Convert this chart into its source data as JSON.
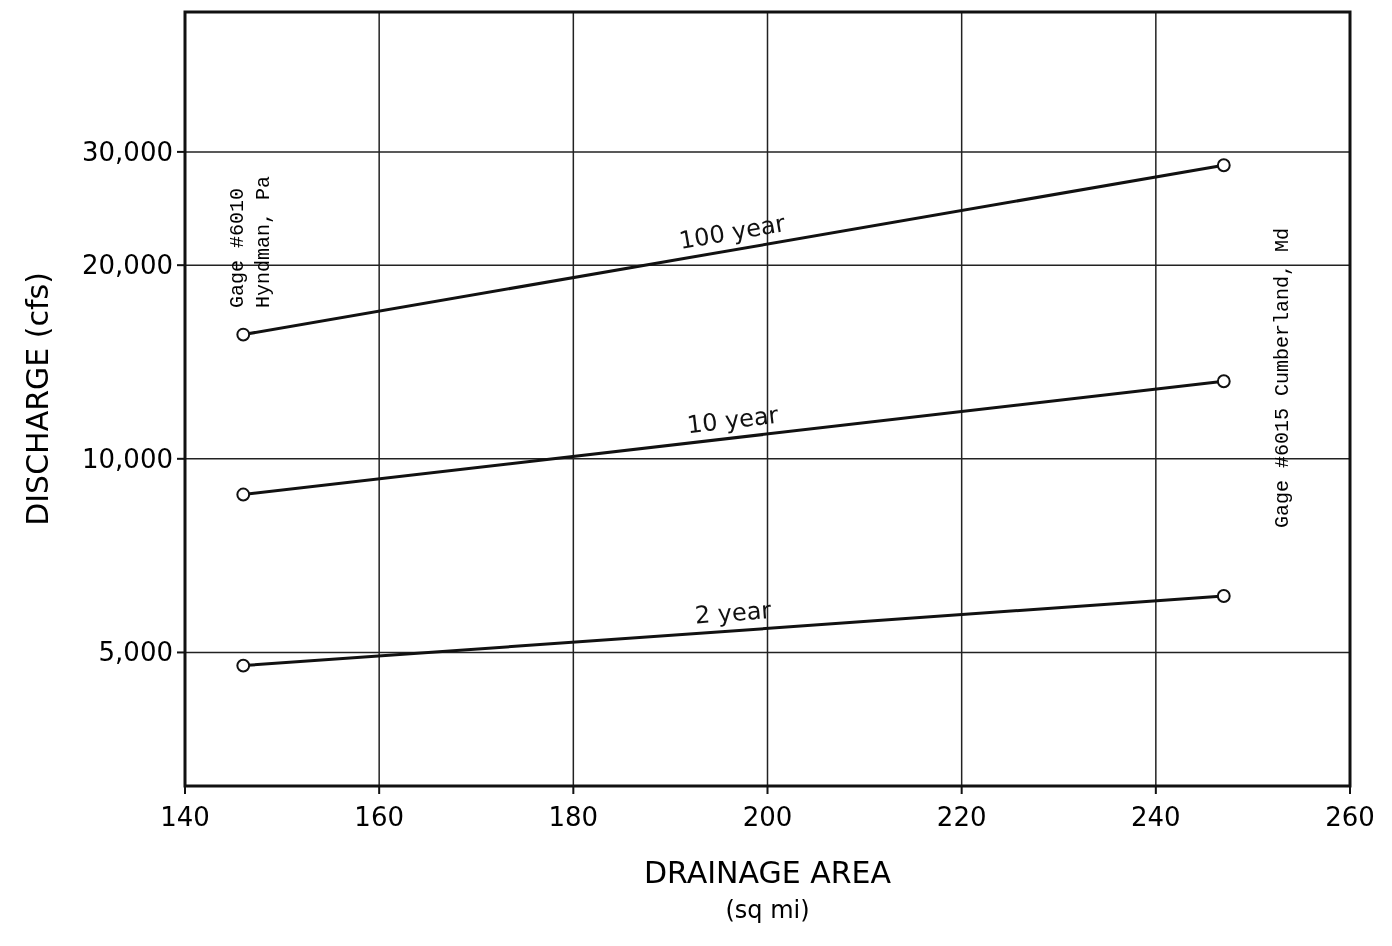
{
  "chart_data": {
    "type": "line",
    "xlabel": "DRAINAGE AREA\n(sq mi)",
    "ylabel": "DISCHARGE (cfs)",
    "log": "y",
    "grid": true,
    "marker": "circle",
    "line_style": "solid",
    "xlim": [
      140,
      260
    ],
    "xticks": [
      140,
      160,
      180,
      200,
      220,
      240,
      260
    ],
    "ylim": [
      3100,
      49500
    ],
    "yticks": [
      {
        "value": 5000,
        "label": "5,000"
      },
      {
        "value": 10000,
        "label": "10,000"
      },
      {
        "value": 20000,
        "label": "20,000"
      },
      {
        "value": 30000,
        "label": "30,000"
      }
    ],
    "x": [
      146,
      247
    ],
    "series": [
      {
        "name": "100 year",
        "color": "#111111",
        "values": [
          15600,
          28600
        ]
      },
      {
        "name": "10 year",
        "color": "#111111",
        "values": [
          8800,
          13200
        ]
      },
      {
        "name": "2 year",
        "color": "#111111",
        "values": [
          4770,
          6120
        ]
      }
    ],
    "annotations": [
      "Gage #6010\nHyndman, Pa",
      "Gage #6015 Cumberland, Md"
    ]
  }
}
